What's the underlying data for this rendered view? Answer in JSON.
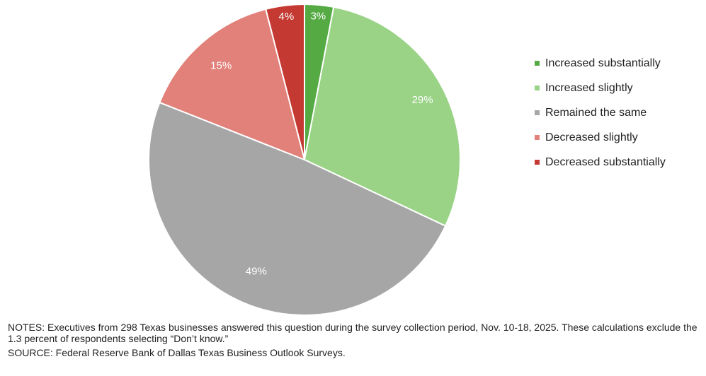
{
  "chart_data": {
    "type": "pie",
    "title": "",
    "categories": [
      "Increased substantially",
      "Increased slightly",
      "Remained the same",
      "Decreased slightly",
      "Decreased substantially"
    ],
    "values": [
      3,
      29,
      49,
      15,
      4
    ],
    "data_labels": [
      "3%",
      "29%",
      "49%",
      "15%",
      "4%"
    ],
    "colors": [
      "#55aa44",
      "#9ad386",
      "#a6a6a6",
      "#e2807a",
      "#c43a32"
    ],
    "start_angle_deg": 0,
    "direction": "clockwise",
    "legend": {
      "position": "right",
      "entries": [
        "Increased substantially",
        "Increased slightly",
        "Remained the same",
        "Decreased slightly",
        "Decreased substantially"
      ]
    }
  },
  "notes": {
    "text": "NOTES: Executives from 298 Texas businesses answered this question during the survey collection period, Nov. 10-18, 2025. These calculations exclude the 1.3 percent of respondents selecting “Don’t know.”",
    "source": "SOURCE: Federal Reserve Bank of Dallas Texas Business Outlook Surveys."
  }
}
